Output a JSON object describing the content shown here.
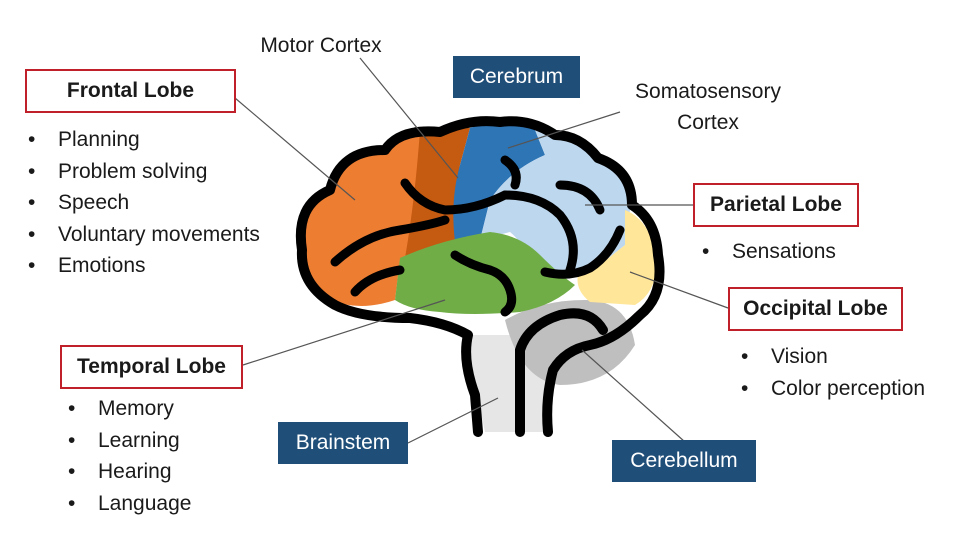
{
  "labels": {
    "motor_cortex": "Motor Cortex",
    "cerebrum": "Cerebrum",
    "somatosensory_line1": "Somatosensory",
    "somatosensory_line2": "Cortex",
    "brainstem": "Brainstem",
    "cerebellum": "Cerebellum"
  },
  "lobes": {
    "frontal": {
      "title": "Frontal Lobe",
      "items": [
        "Planning",
        "Problem solving",
        "Speech",
        "Voluntary movements",
        "Emotions"
      ]
    },
    "parietal": {
      "title": "Parietal Lobe",
      "items": [
        "Sensations"
      ]
    },
    "occipital": {
      "title": "Occipital Lobe",
      "items": [
        "Vision",
        "Color perception"
      ]
    },
    "temporal": {
      "title": "Temporal Lobe",
      "items": [
        "Memory",
        "Learning",
        "Hearing",
        "Language"
      ]
    }
  },
  "colors": {
    "frontal": "#ed7d31",
    "motor_cortex": "#c55a11",
    "somatosensory": "#2e75b6",
    "parietal": "#bdd7ee",
    "occipital": "#ffe699",
    "temporal": "#70ad47",
    "cerebellum": "#bfbfbf",
    "brainstem": "#e7e6e6",
    "label_box_border": "#c0202a",
    "label_blue": "#1f4e79"
  }
}
